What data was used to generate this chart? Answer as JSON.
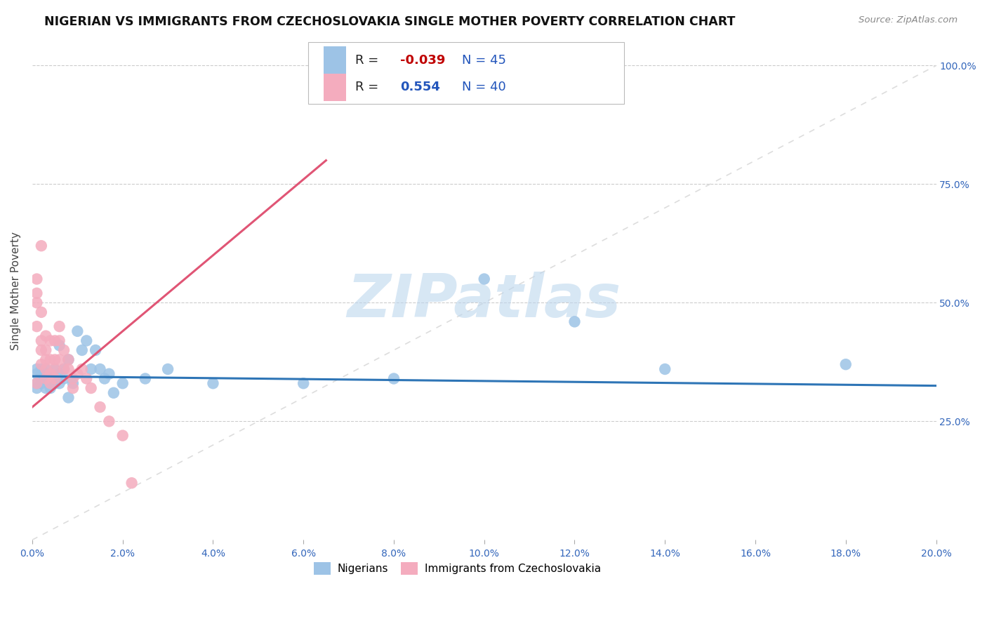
{
  "title": "NIGERIAN VS IMMIGRANTS FROM CZECHOSLOVAKIA SINGLE MOTHER POVERTY CORRELATION CHART",
  "source": "Source: ZipAtlas.com",
  "ylabel": "Single Mother Poverty",
  "xlim": [
    0.0,
    0.2
  ],
  "ylim": [
    0.0,
    1.05
  ],
  "ytick_positions": [
    0.25,
    0.5,
    0.75,
    1.0
  ],
  "ytick_labels": [
    "25.0%",
    "50.0%",
    "75.0%",
    "100.0%"
  ],
  "xtick_vals": [
    0.0,
    0.02,
    0.04,
    0.06,
    0.08,
    0.1,
    0.12,
    0.14,
    0.16,
    0.18,
    0.2
  ],
  "blue_R": "-0.039",
  "blue_N": 45,
  "pink_R": "0.554",
  "pink_N": 40,
  "blue_color": "#9DC3E6",
  "pink_color": "#F4ACBE",
  "blue_line_color": "#2E75B6",
  "pink_line_color": "#E05575",
  "grid_color": "#CCCCCC",
  "diag_color": "#DDDDDD",
  "watermark": "ZIPatlas",
  "watermark_color": "#BDD7EE",
  "blue_scatter_x": [
    0.001,
    0.001,
    0.001,
    0.001,
    0.002,
    0.002,
    0.002,
    0.002,
    0.003,
    0.003,
    0.003,
    0.003,
    0.004,
    0.004,
    0.004,
    0.005,
    0.005,
    0.005,
    0.006,
    0.006,
    0.006,
    0.007,
    0.007,
    0.008,
    0.008,
    0.009,
    0.01,
    0.011,
    0.012,
    0.013,
    0.014,
    0.015,
    0.016,
    0.017,
    0.018,
    0.02,
    0.025,
    0.03,
    0.04,
    0.06,
    0.08,
    0.1,
    0.12,
    0.14,
    0.18
  ],
  "blue_scatter_y": [
    0.35,
    0.33,
    0.36,
    0.32,
    0.34,
    0.36,
    0.33,
    0.35,
    0.34,
    0.35,
    0.32,
    0.36,
    0.34,
    0.35,
    0.32,
    0.33,
    0.36,
    0.34,
    0.33,
    0.35,
    0.41,
    0.34,
    0.36,
    0.3,
    0.38,
    0.33,
    0.44,
    0.4,
    0.42,
    0.36,
    0.4,
    0.36,
    0.34,
    0.35,
    0.31,
    0.33,
    0.34,
    0.36,
    0.33,
    0.33,
    0.34,
    0.55,
    0.46,
    0.36,
    0.37
  ],
  "pink_scatter_x": [
    0.001,
    0.001,
    0.001,
    0.001,
    0.001,
    0.002,
    0.002,
    0.002,
    0.002,
    0.002,
    0.003,
    0.003,
    0.003,
    0.003,
    0.003,
    0.004,
    0.004,
    0.004,
    0.004,
    0.005,
    0.005,
    0.005,
    0.005,
    0.006,
    0.006,
    0.006,
    0.007,
    0.007,
    0.008,
    0.008,
    0.009,
    0.009,
    0.01,
    0.011,
    0.012,
    0.013,
    0.015,
    0.017,
    0.02,
    0.022
  ],
  "pink_scatter_y": [
    0.52,
    0.55,
    0.5,
    0.45,
    0.33,
    0.48,
    0.42,
    0.4,
    0.37,
    0.62,
    0.43,
    0.4,
    0.38,
    0.36,
    0.34,
    0.42,
    0.38,
    0.35,
    0.33,
    0.42,
    0.38,
    0.36,
    0.34,
    0.45,
    0.42,
    0.38,
    0.4,
    0.36,
    0.38,
    0.36,
    0.34,
    0.32,
    0.35,
    0.36,
    0.34,
    0.32,
    0.28,
    0.25,
    0.22,
    0.12
  ],
  "blue_line_x0": 0.0,
  "blue_line_x1": 0.2,
  "blue_line_y0": 0.345,
  "blue_line_y1": 0.325,
  "pink_line_x0": 0.0,
  "pink_line_x1": 0.065,
  "pink_line_y0": 0.28,
  "pink_line_y1": 0.8
}
